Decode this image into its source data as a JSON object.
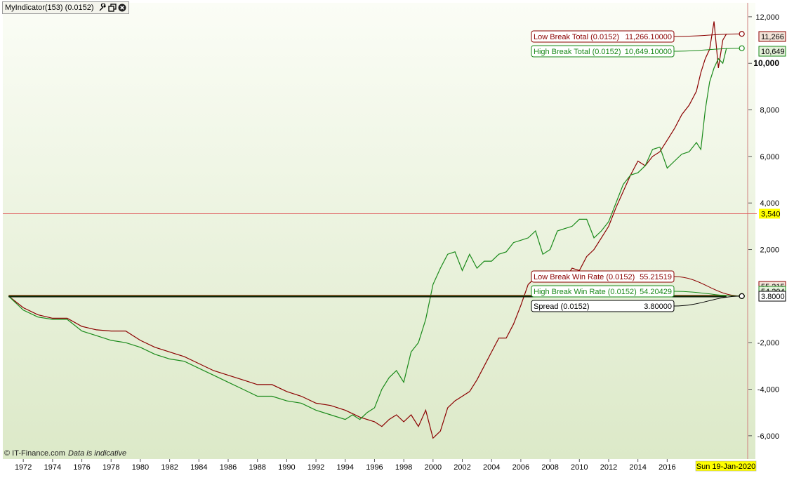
{
  "header": {
    "title": "MyIndicator(153) (0.0152)",
    "icons": [
      "wrench-icon",
      "restore-window-icon",
      "close-icon"
    ]
  },
  "watermark": {
    "source": "© IT-Finance.com",
    "note": "Data is indicative"
  },
  "colors": {
    "low_break": "#8b0000",
    "high_break": "#1a8a1a",
    "spread": "#000000",
    "cursor_line": "#e06060",
    "price_tag": "#ffff00",
    "background_top": "#fbfdf6",
    "background_bottom": "#dce9c8"
  },
  "chart_data": {
    "type": "line",
    "x_range": [
      1970.6,
      2021.5
    ],
    "ylim": [
      -7000,
      12600
    ],
    "yticks": [
      {
        "value": 12000,
        "label": "12,000"
      },
      {
        "value": 10000,
        "label": "10,000"
      },
      {
        "value": 8000,
        "label": "8,000"
      },
      {
        "value": 6000,
        "label": "6,000"
      },
      {
        "value": 4000,
        "label": "4,000"
      },
      {
        "value": 2000,
        "label": "2,000"
      },
      {
        "value": -2000,
        "label": "-2,000"
      },
      {
        "value": -4000,
        "label": "-4,000"
      },
      {
        "value": -6000,
        "label": "-6,000"
      }
    ],
    "xticks": [
      {
        "value": 1972,
        "label": "1972"
      },
      {
        "value": 1974,
        "label": "1974"
      },
      {
        "value": 1976,
        "label": "1976"
      },
      {
        "value": 1978,
        "label": "1978"
      },
      {
        "value": 1980,
        "label": "1980"
      },
      {
        "value": 1982,
        "label": "1982"
      },
      {
        "value": 1984,
        "label": "1984"
      },
      {
        "value": 1986,
        "label": "1986"
      },
      {
        "value": 1988,
        "label": "1988"
      },
      {
        "value": 1990,
        "label": "1990"
      },
      {
        "value": 1992,
        "label": "1992"
      },
      {
        "value": 1994,
        "label": "1994"
      },
      {
        "value": 1996,
        "label": "1996"
      },
      {
        "value": 1998,
        "label": "1998"
      },
      {
        "value": 2000,
        "label": "2000"
      },
      {
        "value": 2002,
        "label": "2002"
      },
      {
        "value": 2004,
        "label": "2004"
      },
      {
        "value": 2006,
        "label": "2006"
      },
      {
        "value": 2008,
        "label": "2008"
      },
      {
        "value": 2010,
        "label": "2010"
      },
      {
        "value": 2012,
        "label": "2012"
      },
      {
        "value": 2014,
        "label": "2014"
      },
      {
        "value": 2016,
        "label": "2016"
      }
    ],
    "date_tag": "Sun 19-Jan-2020",
    "cursor_line": {
      "value": 3540,
      "label": "3,540"
    },
    "series": [
      {
        "name": "Low Break Total (0.0152)",
        "value_label": "11,266.10000",
        "axis_tag": "11,266",
        "color": "#8b0000",
        "x": [
          1971.0,
          1972.0,
          1973.0,
          1974.0,
          1975.0,
          1976.0,
          1977.0,
          1978.0,
          1979.0,
          1980.0,
          1981.0,
          1982.0,
          1983.0,
          1984.0,
          1985.0,
          1986.0,
          1987.0,
          1988.0,
          1989.0,
          1990.0,
          1991.0,
          1992.0,
          1993.0,
          1994.0,
          1995.0,
          1996.0,
          1996.5,
          1997.0,
          1997.5,
          1998.0,
          1998.5,
          1999.0,
          1999.5,
          2000.0,
          2000.5,
          2001.0,
          2001.5,
          2002.0,
          2002.5,
          2003.0,
          2003.5,
          2004.0,
          2004.5,
          2005.0,
          2005.5,
          2006.0,
          2006.5,
          2007.0,
          2007.5,
          2008.0,
          2008.5,
          2009.0,
          2009.5,
          2010.0,
          2010.5,
          2011.0,
          2011.5,
          2012.0,
          2012.5,
          2013.0,
          2013.5,
          2014.0,
          2014.5,
          2015.0,
          2015.5,
          2016.0,
          2016.5,
          2017.0,
          2017.5,
          2018.0,
          2018.3,
          2018.6,
          2018.9,
          2019.2,
          2019.5,
          2019.8,
          2020.05
        ],
        "y": [
          0,
          -500,
          -800,
          -950,
          -950,
          -1300,
          -1450,
          -1500,
          -1500,
          -1900,
          -2200,
          -2400,
          -2600,
          -2900,
          -3200,
          -3400,
          -3600,
          -3800,
          -3800,
          -4100,
          -4300,
          -4600,
          -4700,
          -4900,
          -5200,
          -5400,
          -5600,
          -5300,
          -5100,
          -5400,
          -5100,
          -5600,
          -4900,
          -6100,
          -5800,
          -4800,
          -4500,
          -4300,
          -4100,
          -3600,
          -3000,
          -2400,
          -1800,
          -1800,
          -1200,
          -400,
          500,
          800,
          700,
          800,
          1000,
          700,
          1200,
          1100,
          1700,
          2000,
          2500,
          3000,
          3800,
          4500,
          5200,
          5800,
          5600,
          6000,
          6200,
          6700,
          7200,
          7800,
          8200,
          8800,
          9600,
          10200,
          10600,
          11800,
          9800,
          11000,
          11266
        ]
      },
      {
        "name": "High Break Total (0.0152)",
        "value_label": "10,649.10000",
        "axis_tag": "10,649",
        "color": "#1a8a1a",
        "x": [
          1971.0,
          1972.0,
          1973.0,
          1974.0,
          1975.0,
          1976.0,
          1977.0,
          1978.0,
          1979.0,
          1980.0,
          1981.0,
          1982.0,
          1983.0,
          1984.0,
          1985.0,
          1986.0,
          1987.0,
          1988.0,
          1989.0,
          1990.0,
          1991.0,
          1992.0,
          1993.0,
          1994.0,
          1994.5,
          1995.0,
          1995.5,
          1996.0,
          1996.5,
          1997.0,
          1997.5,
          1998.0,
          1998.5,
          1999.0,
          1999.5,
          2000.0,
          2000.5,
          2001.0,
          2001.5,
          2002.0,
          2002.5,
          2003.0,
          2003.5,
          2004.0,
          2004.5,
          2005.0,
          2005.5,
          2006.0,
          2006.5,
          2007.0,
          2007.5,
          2008.0,
          2008.5,
          2009.0,
          2009.5,
          2010.0,
          2010.5,
          2011.0,
          2011.5,
          2012.0,
          2012.5,
          2013.0,
          2013.5,
          2014.0,
          2014.5,
          2015.0,
          2015.5,
          2016.0,
          2016.5,
          2017.0,
          2017.5,
          2018.0,
          2018.3,
          2018.6,
          2018.9,
          2019.2,
          2019.5,
          2019.8,
          2020.05
        ],
        "y": [
          0,
          -600,
          -900,
          -1000,
          -1000,
          -1500,
          -1700,
          -1900,
          -2000,
          -2200,
          -2500,
          -2700,
          -2800,
          -3100,
          -3400,
          -3700,
          -4000,
          -4300,
          -4300,
          -4500,
          -4600,
          -4900,
          -5100,
          -5300,
          -5100,
          -5300,
          -5000,
          -4800,
          -4000,
          -3500,
          -3200,
          -3700,
          -2400,
          -2000,
          -1000,
          500,
          1200,
          1800,
          1900,
          1100,
          1800,
          1200,
          1500,
          1500,
          1800,
          1900,
          2300,
          2400,
          2500,
          2800,
          1800,
          2000,
          2800,
          2900,
          3000,
          3300,
          3300,
          2500,
          2800,
          3200,
          4000,
          4800,
          5200,
          5300,
          5600,
          6300,
          6400,
          5500,
          5800,
          6100,
          6200,
          6600,
          6300,
          8000,
          9200,
          9800,
          10200,
          10000,
          10649
        ]
      },
      {
        "name": "Low Break Win Rate (0.0152)",
        "value_label": "55.21519",
        "axis_tag": "55.215",
        "color": "#8b0000",
        "x": [
          1971.0,
          2020.05
        ],
        "y": [
          55,
          55
        ]
      },
      {
        "name": "High Break Win Rate (0.0152)",
        "value_label": "54.20429",
        "axis_tag": "54.204",
        "color": "#1a8a1a",
        "x": [
          1971.0,
          2020.05
        ],
        "y": [
          54,
          54
        ]
      },
      {
        "name": "Spread (0.0152)",
        "value_label": "3.80000",
        "axis_tag": "3.8000",
        "color": "#000000",
        "x": [
          1971.0,
          2020.05
        ],
        "y": [
          4,
          4
        ]
      }
    ]
  }
}
